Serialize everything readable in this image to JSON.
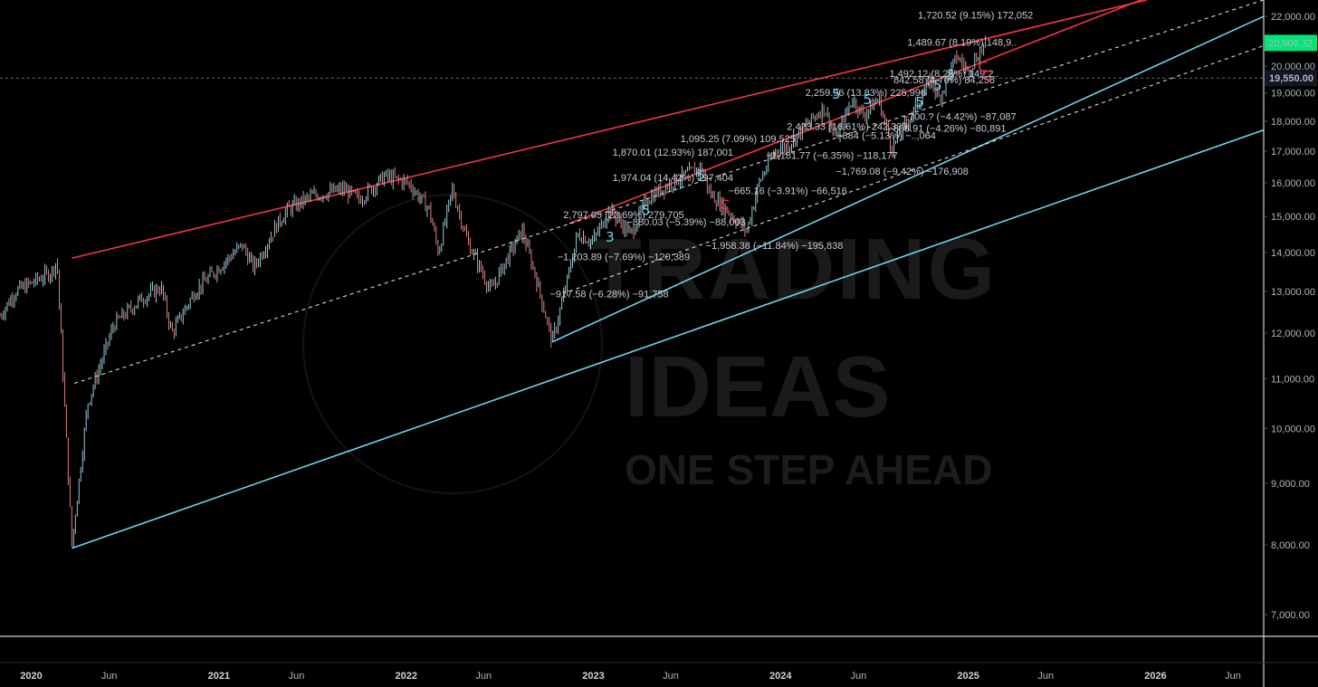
{
  "chart_data": {
    "type": "candlestick",
    "y_scale": "log",
    "ylim": [
      6500,
      22700
    ],
    "x_range": [
      "2019-11-01",
      "2026-07-31"
    ],
    "y_ticks": [
      "22,000.00",
      "21,000.00",
      "20,000.00",
      "19,000.00",
      "18,000.00",
      "17,000.00",
      "16,000.00",
      "15,000.00",
      "14,000.00",
      "13,000.00",
      "12,000.00",
      "11,000.00",
      "10,000.00",
      "9,000.00",
      "8,000.00",
      "7,000.00"
    ],
    "y_tick_values": [
      22000,
      21000,
      20000,
      19000,
      18000,
      17000,
      16000,
      15000,
      14000,
      13000,
      12000,
      11000,
      10000,
      9000,
      8000,
      7000
    ],
    "x_ticks": [
      {
        "label": "2020",
        "date": "2020-01-01",
        "major": true
      },
      {
        "label": "Jun",
        "date": "2020-06-01",
        "major": false
      },
      {
        "label": "2021",
        "date": "2021-01-01",
        "major": true
      },
      {
        "label": "Jun",
        "date": "2021-06-01",
        "major": false
      },
      {
        "label": "2022",
        "date": "2022-01-01",
        "major": true
      },
      {
        "label": "Jun",
        "date": "2022-06-01",
        "major": false
      },
      {
        "label": "2023",
        "date": "2023-01-01",
        "major": true
      },
      {
        "label": "Jun",
        "date": "2023-06-01",
        "major": false
      },
      {
        "label": "2024",
        "date": "2024-01-01",
        "major": true
      },
      {
        "label": "Jun",
        "date": "2024-06-01",
        "major": false
      },
      {
        "label": "2025",
        "date": "2025-01-01",
        "major": true
      },
      {
        "label": "Jun",
        "date": "2025-06-01",
        "major": false
      },
      {
        "label": "2026",
        "date": "2026-01-01",
        "major": true
      },
      {
        "label": "Jun",
        "date": "2026-06-01",
        "major": false
      }
    ],
    "last_price_label": "20,909.32",
    "last_price": 20909.32,
    "crosshair_label": "19,550.00",
    "crosshair_price": 19550,
    "price_path": [
      [
        "2019-11-01",
        12400
      ],
      [
        "2019-12-01",
        13000
      ],
      [
        "2020-01-01",
        13200
      ],
      [
        "2020-02-10",
        13500
      ],
      [
        "2020-02-20",
        13800
      ],
      [
        "2020-03-20",
        8000
      ],
      [
        "2020-04-20",
        10500
      ],
      [
        "2020-06-10",
        12200
      ],
      [
        "2020-08-01",
        12800
      ],
      [
        "2020-09-10",
        13100
      ],
      [
        "2020-10-01",
        12000
      ],
      [
        "2020-11-15",
        13000
      ],
      [
        "2020-12-31",
        13600
      ],
      [
        "2021-02-15",
        14200
      ],
      [
        "2021-03-10",
        13600
      ],
      [
        "2021-04-25",
        14800
      ],
      [
        "2021-05-15",
        15200
      ],
      [
        "2021-07-01",
        15600
      ],
      [
        "2021-09-01",
        15800
      ],
      [
        "2021-10-01",
        15500
      ],
      [
        "2021-11-20",
        16200
      ],
      [
        "2022-01-05",
        16000
      ],
      [
        "2022-02-15",
        15200
      ],
      [
        "2022-03-05",
        14000
      ],
      [
        "2022-04-01",
        15800
      ],
      [
        "2022-05-01",
        14300
      ],
      [
        "2022-06-15",
        13000
      ],
      [
        "2022-07-15",
        13800
      ],
      [
        "2022-08-15",
        14600
      ],
      [
        "2022-09-10",
        13400
      ],
      [
        "2022-10-13",
        11800
      ],
      [
        "2022-11-10",
        13200
      ],
      [
        "2022-12-01",
        14500
      ],
      [
        "2022-12-31",
        14300
      ],
      [
        "2023-02-01",
        15200
      ],
      [
        "2023-03-15",
        14500
      ],
      [
        "2023-04-15",
        15500
      ],
      [
        "2023-06-01",
        16000
      ],
      [
        "2023-07-31",
        16500
      ],
      [
        "2023-08-15",
        15700
      ],
      [
        "2023-10-27",
        14600
      ],
      [
        "2023-11-20",
        16000
      ],
      [
        "2023-12-20",
        17000
      ],
      [
        "2024-01-15",
        17200
      ],
      [
        "2024-03-25",
        18500
      ],
      [
        "2024-04-19",
        17400
      ],
      [
        "2024-05-20",
        18800
      ],
      [
        "2024-06-10",
        18200
      ],
      [
        "2024-07-10",
        18800
      ],
      [
        "2024-08-05",
        17100
      ],
      [
        "2024-09-15",
        18300
      ],
      [
        "2024-10-20",
        19500
      ],
      [
        "2024-11-05",
        18800
      ],
      [
        "2024-12-10",
        20400
      ],
      [
        "2024-12-31",
        19800
      ],
      [
        "2025-01-15",
        20300
      ],
      [
        "2025-02-05",
        20909
      ]
    ],
    "trendlines": [
      {
        "name": "red-upper",
        "color": "#f23645",
        "p1": [
          "2020-03-20",
          13850
        ],
        "p2": [
          "2025-12-15",
          22700
        ]
      },
      {
        "name": "red-inner",
        "color": "#f23645",
        "p1": [
          "2022-11-15",
          14800
        ],
        "p2": [
          "2025-12-15",
          22800
        ]
      },
      {
        "name": "blue-lower-steep",
        "color": "#6fd3ec",
        "p1": [
          "2022-10-13",
          11800
        ],
        "p2": [
          "2026-07-31",
          22000
        ]
      },
      {
        "name": "blue-lower",
        "color": "#6fd3ec",
        "p1": [
          "2020-03-20",
          7950
        ],
        "p2": [
          "2026-07-31",
          17700
        ]
      },
      {
        "name": "dash-mid",
        "color": "#ffffff",
        "dashed": true,
        "p1": [
          "2020-03-25",
          10900
        ],
        "p2": [
          "2026-07-31",
          22700
        ]
      },
      {
        "name": "dash-lower",
        "color": "#ffffff",
        "dashed": true,
        "p1": [
          "2022-11-15",
          13000
        ],
        "p2": [
          "2026-07-31",
          20800
        ]
      }
    ],
    "annotations": [
      "1,720.52 (9.15%) 172,052",
      "1,489.67 (8.19%) 148,9..",
      "1,492.12 (8.28%) 149,2..",
      "842.58 (4.70%) 84,258",
      "2,259.96 (13.83%) 225,996",
      "−700.? (−4.42%) −87,087",
      "−808.91 (−4.26%) −80,891",
      "2,423.33 (16.61%) 242,333",
      "−884 (−5.13%) −..,064",
      "1,095.25 (7.09%) 109,525",
      "−1,181.77 (−6.35%) −118,177",
      "1,870.01 (12.93%) 187,001",
      "−1,769.08 (−9.42%) −176,908",
      "1,974.04 (14.42%) 197,404",
      "−665.16 (−3.91%) −66,516",
      "2,797.05 (23.69%) 279,705",
      "−880.03 (−5.39%) −88,003",
      "−1,203.89 (−7.69%) −120,389",
      "−1,958.38 (−11.84%) −195,838",
      "−917.58 (−6.28%) −91,758"
    ],
    "annotation_anchors": [
      [
        "2025-01-15",
        21900
      ],
      [
        "2024-12-20",
        20800
      ],
      [
        "2024-11-15",
        19600
      ],
      [
        "2024-11-15",
        19350
      ],
      [
        "2024-06-15",
        18900
      ],
      [
        "2024-12-15",
        18050
      ],
      [
        "2024-11-20",
        17650
      ],
      [
        "2024-05-10",
        17700
      ],
      [
        "2024-07-25",
        17400
      ],
      [
        "2023-10-10",
        17300
      ],
      [
        "2024-04-10",
        16750
      ],
      [
        "2023-06-05",
        16850
      ],
      [
        "2024-08-25",
        16250
      ],
      [
        "2023-06-05",
        16050
      ],
      [
        "2024-01-15",
        15650
      ],
      [
        "2023-03-01",
        14950
      ],
      [
        "2023-07-01",
        14750
      ],
      [
        "2023-03-01",
        13800
      ],
      [
        "2023-12-20",
        14100
      ],
      [
        "2023-02-01",
        12850
      ]
    ],
    "wave_labels": [
      "3",
      "5",
      "5",
      "5",
      "5",
      "5",
      "5",
      "5",
      "C",
      "C",
      "C"
    ],
    "watermark": {
      "line1": "TRADING",
      "line2": "IDEAS",
      "line3": "ONE STEP AHEAD"
    }
  },
  "colors": {
    "red": "#f23645",
    "blue": "#6fd3ec",
    "up": "#9fe1ec",
    "down": "#f28f8f",
    "green_label": "#00e676",
    "background": "#000000"
  }
}
